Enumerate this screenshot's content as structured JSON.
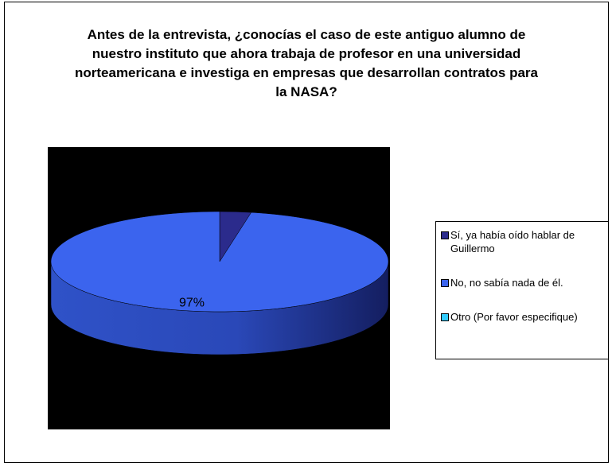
{
  "chart_data": {
    "type": "pie",
    "title": "Antes de la entrevista, ¿conocías el caso de este antiguo alumno de nuestro instituto que ahora trabaja de profesor en una universidad norteamericana e investiga en empresas que desarrollan contratos para la NASA?",
    "categories": [
      "Sí, ya había oído hablar de Guillermo",
      "No, no sabía nada de él.",
      "Otro (Por favor especifique)"
    ],
    "values": [
      3,
      97,
      0
    ],
    "value_labels": [
      null,
      "97%",
      null
    ],
    "colors": [
      "#2b2b8c",
      "#3b64ee",
      "#33ccff"
    ],
    "legend": "right"
  }
}
